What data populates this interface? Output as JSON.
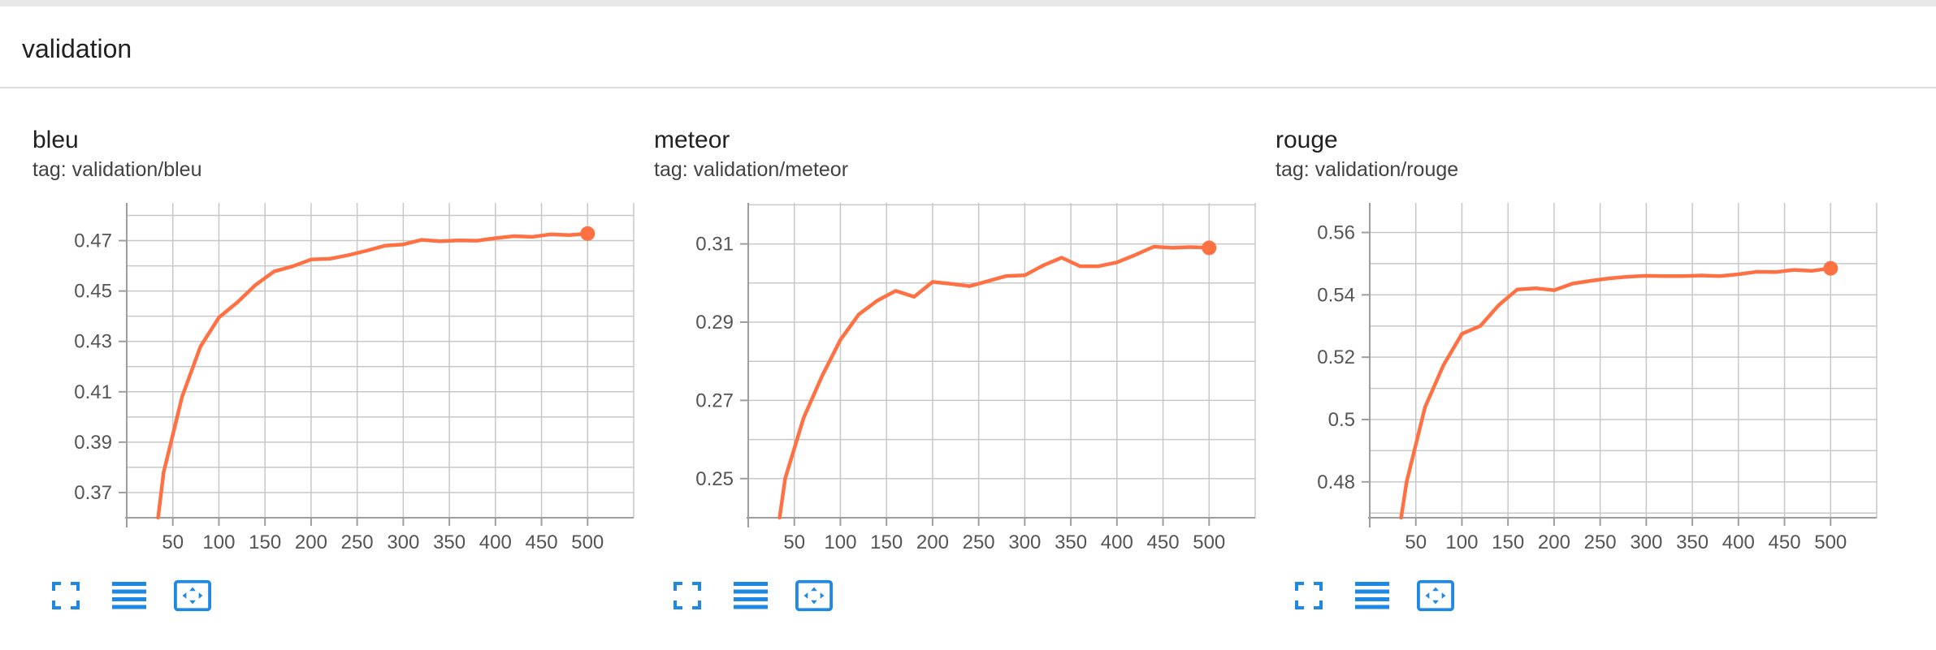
{
  "section": {
    "title": "validation"
  },
  "colors": {
    "line": "#ff7043",
    "grid": "#c8c8c8",
    "axis": "#9e9e9e",
    "icon": "#1e88e5"
  },
  "icons": [
    "fullscreen-icon",
    "list-icon",
    "fit-domain-icon"
  ],
  "cards": [
    {
      "title": "bleu",
      "tag": "tag: validation/bleu"
    },
    {
      "title": "meteor",
      "tag": "tag: validation/meteor"
    },
    {
      "title": "rouge",
      "tag": "tag: validation/rouge"
    }
  ],
  "chart_data": [
    {
      "type": "line",
      "title": "bleu",
      "xlim": [
        0,
        550
      ],
      "ylim": [
        0.36,
        0.485
      ],
      "xticks": [
        50,
        100,
        150,
        200,
        250,
        300,
        350,
        400,
        450,
        500
      ],
      "yticks": [
        0.37,
        0.39,
        0.41,
        0.43,
        0.45,
        0.47
      ],
      "ytick_labels": [
        "0.37",
        "0.39",
        "0.41",
        "0.43",
        "0.45",
        "0.47"
      ],
      "grid": true,
      "series": [
        {
          "x": [
            34,
            40,
            60,
            80,
            100,
            120,
            140,
            160,
            180,
            200,
            220,
            240,
            260,
            280,
            300,
            320,
            340,
            360,
            380,
            400,
            420,
            440,
            460,
            480,
            500
          ],
          "y": [
            0.36,
            0.378,
            0.408,
            0.428,
            0.4395,
            0.4455,
            0.4525,
            0.4578,
            0.4598,
            0.4625,
            0.4628,
            0.4642,
            0.466,
            0.468,
            0.4685,
            0.4703,
            0.4698,
            0.4701,
            0.47,
            0.471,
            0.4718,
            0.4715,
            0.4725,
            0.4722,
            0.4728
          ]
        }
      ]
    },
    {
      "type": "line",
      "title": "meteor",
      "xlim": [
        0,
        550
      ],
      "ylim": [
        0.24,
        0.3205
      ],
      "xticks": [
        50,
        100,
        150,
        200,
        250,
        300,
        350,
        400,
        450,
        500
      ],
      "yticks": [
        0.25,
        0.27,
        0.29,
        0.31
      ],
      "ytick_labels": [
        "0.25",
        "0.27",
        "0.29",
        "0.31"
      ],
      "grid": true,
      "series": [
        {
          "x": [
            34,
            40,
            60,
            80,
            100,
            120,
            140,
            160,
            180,
            200,
            220,
            240,
            260,
            280,
            300,
            320,
            340,
            360,
            380,
            400,
            420,
            440,
            460,
            480,
            500
          ],
          "y": [
            0.24,
            0.25,
            0.2655,
            0.2762,
            0.2855,
            0.292,
            0.2955,
            0.298,
            0.2965,
            0.3003,
            0.2998,
            0.2992,
            0.3005,
            0.3018,
            0.302,
            0.3045,
            0.3065,
            0.3043,
            0.3043,
            0.3053,
            0.3072,
            0.3093,
            0.309,
            0.3092,
            0.309
          ]
        }
      ]
    },
    {
      "type": "line",
      "title": "rouge",
      "xlim": [
        0,
        550
      ],
      "ylim": [
        0.4685,
        0.5695
      ],
      "xticks": [
        50,
        100,
        150,
        200,
        250,
        300,
        350,
        400,
        450,
        500
      ],
      "yticks": [
        0.48,
        0.5,
        0.52,
        0.54,
        0.56
      ],
      "ytick_labels": [
        "0.48",
        "0.5",
        "0.52",
        "0.54",
        "0.56"
      ],
      "grid": true,
      "series": [
        {
          "x": [
            34,
            40,
            60,
            80,
            100,
            120,
            140,
            160,
            180,
            200,
            220,
            240,
            260,
            280,
            300,
            320,
            340,
            360,
            380,
            400,
            420,
            440,
            460,
            480,
            500
          ],
          "y": [
            0.4685,
            0.48,
            0.504,
            0.5175,
            0.5275,
            0.53,
            0.5367,
            0.5417,
            0.5421,
            0.5415,
            0.5436,
            0.5445,
            0.5453,
            0.5458,
            0.5461,
            0.546,
            0.546,
            0.5462,
            0.546,
            0.5466,
            0.5474,
            0.5473,
            0.548,
            0.5477,
            0.5485
          ]
        }
      ]
    }
  ]
}
